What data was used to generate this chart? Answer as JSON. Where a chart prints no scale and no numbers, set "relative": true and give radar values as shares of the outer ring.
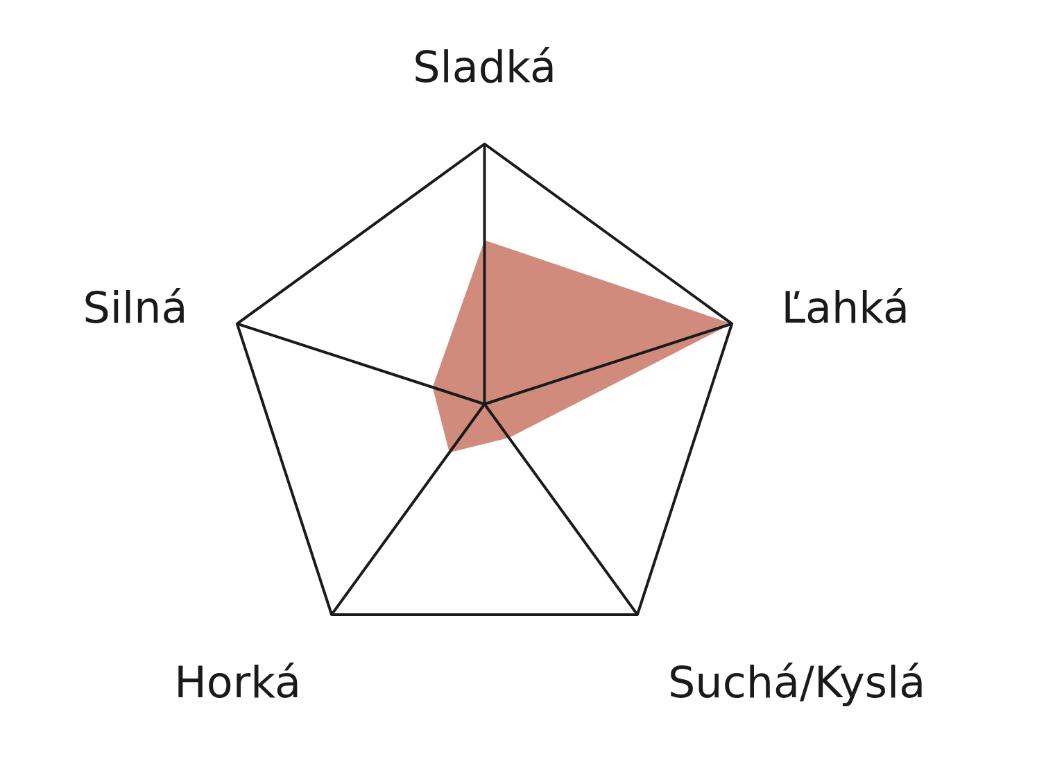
{
  "chart_data": {
    "type": "radar",
    "relative": true,
    "grid": true,
    "categories": [
      "Sladká",
      "Ľahká",
      "Suchá/Kyslá",
      "Horká",
      "Silná"
    ],
    "series": [
      {
        "color": "#d08b7d",
        "values": [
          0.63,
          1.0,
          0.16,
          0.23,
          0.21
        ]
      }
    ]
  }
}
